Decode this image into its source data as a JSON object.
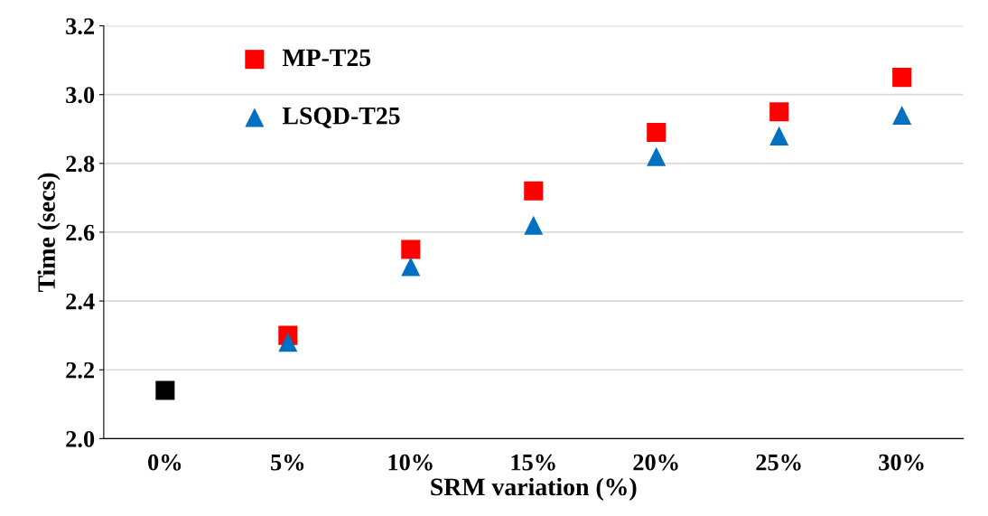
{
  "chart_data": {
    "type": "scatter",
    "xlabel": "SRM variation (%)",
    "ylabel": "Time (secs)",
    "categories": [
      "0%",
      "5%",
      "10%",
      "15%",
      "20%",
      "25%",
      "30%"
    ],
    "series": [
      {
        "name": "MP-T25",
        "color": "#ff0000",
        "colors": [
          "#000000",
          "#ff0000",
          "#ff0000",
          "#ff0000",
          "#ff0000",
          "#ff0000",
          "#ff0000"
        ],
        "marker": "square",
        "values": [
          2.14,
          2.3,
          2.55,
          2.72,
          2.89,
          2.95,
          3.05
        ]
      },
      {
        "name": "LSQD-T25",
        "color": "#0070c0",
        "marker": "triangle",
        "values": [
          null,
          2.28,
          2.5,
          2.62,
          2.82,
          2.88,
          2.94
        ]
      }
    ],
    "ylim": [
      2.0,
      3.2
    ],
    "yticks": [
      {
        "value": 2.0,
        "label": "2.0"
      },
      2.2,
      2.4,
      2.6,
      2.8,
      {
        "value": 3.0,
        "label": "3.0"
      },
      3.2
    ],
    "grid": "y",
    "legend": "top left"
  }
}
